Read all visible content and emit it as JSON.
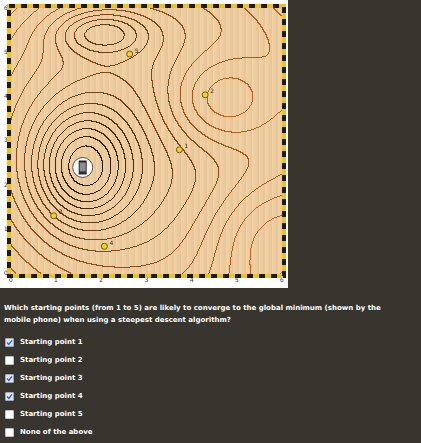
{
  "chart_data": {
    "type": "scatter",
    "xlim": [
      0,
      6
    ],
    "ylim": [
      0,
      6
    ],
    "xticks": [
      0,
      1,
      2,
      3,
      4,
      5,
      6
    ],
    "yticks": [
      0,
      1,
      2,
      3,
      4,
      5,
      6
    ],
    "grid": false,
    "color": "#f2d21b",
    "points": [
      {
        "label": "1",
        "x": 3.73,
        "y": 2.8
      },
      {
        "label": "2",
        "x": 4.3,
        "y": 4.04
      },
      {
        "label": "3",
        "x": 0.95,
        "y": 1.31
      },
      {
        "label": "4",
        "x": 2.07,
        "y": 0.62
      },
      {
        "label": "5",
        "x": 2.63,
        "y": 4.96
      }
    ],
    "minimum": {
      "x": 1.59,
      "y": 2.4
    }
  },
  "question": "Which starting points (from 1 to 5) are likely to converge to the global minimum (shown by the mobile phone) when using a steepest descent algorithm?",
  "options": [
    {
      "label": "Starting point 1",
      "checked": true
    },
    {
      "label": "Starting point 2",
      "checked": false
    },
    {
      "label": "Starting point 3",
      "checked": true
    },
    {
      "label": "Starting point 4",
      "checked": true
    },
    {
      "label": "Starting point 5",
      "checked": false
    },
    {
      "label": "None of the above",
      "checked": false
    }
  ]
}
